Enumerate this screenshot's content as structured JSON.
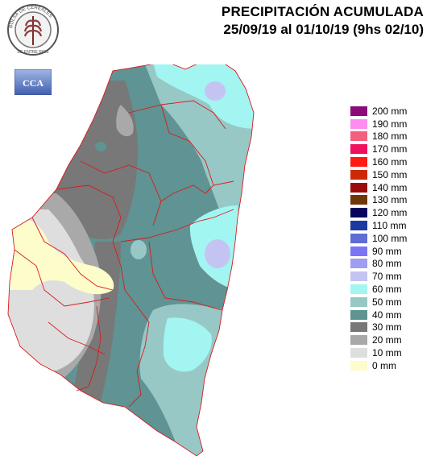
{
  "header": {
    "title": "PRECIPITACIÓN ACUMULADA",
    "subtitle": "25/09/19 al 01/10/19 (9hs 02/10)"
  },
  "logos": {
    "seal_text": "BOLSA DE CEREALES DE ENTRE RIOS",
    "cca_text": "CCA"
  },
  "legend": {
    "items": [
      {
        "label": "200 mm",
        "color": "#8b0a7a"
      },
      {
        "label": "190 mm",
        "color": "#ff8cf0"
      },
      {
        "label": "180 mm",
        "color": "#f2607d"
      },
      {
        "label": "170 mm",
        "color": "#f0105e"
      },
      {
        "label": "160 mm",
        "color": "#ff1a14"
      },
      {
        "label": "150 mm",
        "color": "#cc2a06"
      },
      {
        "label": "140 mm",
        "color": "#9a0c0c"
      },
      {
        "label": "130 mm",
        "color": "#6e3708"
      },
      {
        "label": "120 mm",
        "color": "#08065c"
      },
      {
        "label": "110 mm",
        "color": "#1c3aa0"
      },
      {
        "label": "100 mm",
        "color": "#5f6cd2"
      },
      {
        "label": "90 mm",
        "color": "#7d74f5"
      },
      {
        "label": "80 mm",
        "color": "#9f9ef2"
      },
      {
        "label": "70 mm",
        "color": "#c4c4f2"
      },
      {
        "label": "60 mm",
        "color": "#a3f5f2"
      },
      {
        "label": "50 mm",
        "color": "#98c8c6"
      },
      {
        "label": "40 mm",
        "color": "#609393"
      },
      {
        "label": "30 mm",
        "color": "#787878"
      },
      {
        "label": "20 mm",
        "color": "#a9a9a9"
      },
      {
        "label": "10 mm",
        "color": "#dedede"
      },
      {
        "label": "0 mm",
        "color": "#fdfccb"
      }
    ]
  }
}
